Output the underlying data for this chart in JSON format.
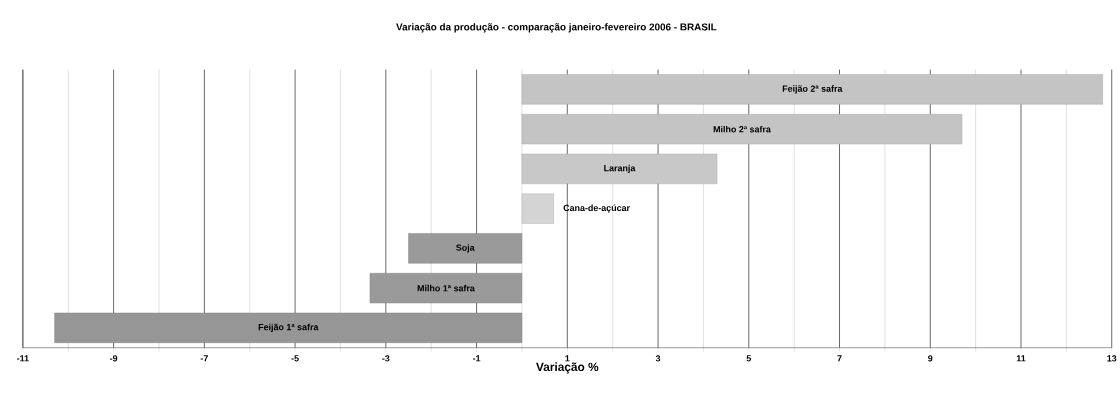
{
  "chart_data": {
    "type": "bar",
    "orientation": "horizontal",
    "title": "Variação da produção - comparação janeiro-fevereiro 2006 - BRASIL",
    "xlabel": "Variação %",
    "categories": [
      "Feijão 2ª safra",
      "Milho 2ª safra",
      "Laranja",
      "Cana-de-açúcar",
      "Soja",
      "Milho 1ª safra",
      "Feijão 1ª safra"
    ],
    "values": [
      12.8,
      9.7,
      4.3,
      0.7,
      -2.5,
      -3.35,
      -10.3
    ],
    "colors": [
      "#c4c4c4",
      "#c4c4c4",
      "#c8c8c8",
      "#d4d4d4",
      "#9a9a9a",
      "#9a9a9a",
      "#969696"
    ],
    "xlim": [
      -11,
      13
    ],
    "xticks": [
      -11,
      {
        "value": -10,
        "label": null
      },
      -9,
      {
        "value": -8,
        "label": null
      },
      -7,
      {
        "value": -6,
        "label": null
      },
      -5,
      {
        "value": -4,
        "label": null
      },
      -3,
      {
        "value": -2,
        "label": null
      },
      -1,
      {
        "value": 0,
        "label": null
      },
      1,
      {
        "value": 2,
        "label": null
      },
      3,
      {
        "value": 4,
        "label": null
      },
      5,
      {
        "value": 6,
        "label": null
      },
      7,
      {
        "value": 8,
        "label": null
      },
      9,
      {
        "value": 10,
        "label": null
      },
      11,
      {
        "value": 12,
        "label": null
      },
      13
    ],
    "grid": "x"
  }
}
